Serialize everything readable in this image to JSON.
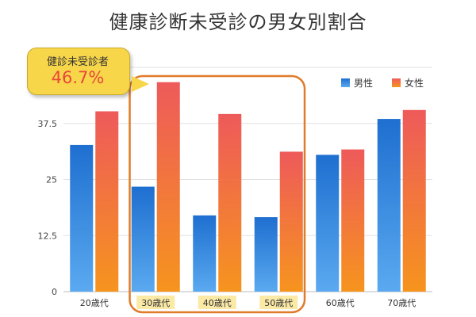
{
  "title": "健康診断未受診の男女別割合",
  "colors": {
    "male_top": "#1e6fd0",
    "male_bottom": "#5aa9f0",
    "female_top": "#ee5a5a",
    "female_bottom": "#f6941e",
    "highlight_box": "#e07b2a",
    "highlight_label_bg": "#fbe9a6",
    "callout_bg": "#f7d64a",
    "callout_value": "#e8473a"
  },
  "callout": {
    "label": "健診未受診者",
    "value": "46.7%"
  },
  "chart_data": {
    "type": "bar",
    "categories": [
      "20歳代",
      "30歳代",
      "40歳代",
      "50歳代",
      "60歳代",
      "70歳代"
    ],
    "highlighted_categories": [
      "30歳代",
      "40歳代",
      "50歳代"
    ],
    "series": [
      {
        "name": "男性",
        "values": [
          32.7,
          23.4,
          17.0,
          16.6,
          30.5,
          38.5
        ]
      },
      {
        "name": "女性",
        "values": [
          40.2,
          46.7,
          39.6,
          31.2,
          31.7,
          40.5
        ]
      }
    ],
    "yticks": [
      "0",
      "12.5",
      "25",
      "37.5"
    ],
    "ylim": [
      0,
      50
    ],
    "grid": true,
    "legend_position": "top-right"
  }
}
